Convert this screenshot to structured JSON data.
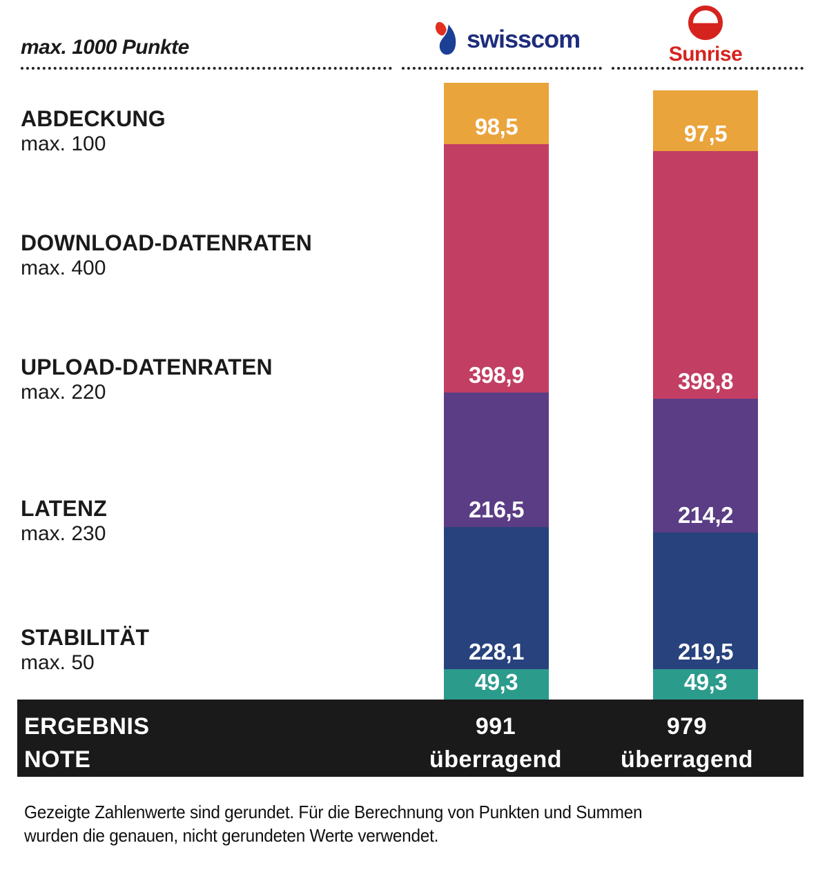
{
  "header": {
    "scale_note": "max. 1000 Punkte",
    "swisscom_label": "swisscom",
    "sunrise_label": "Sunrise"
  },
  "chart_data": {
    "type": "bar",
    "stacked": true,
    "title": "max. 1000 Punkte",
    "max_total": 1000,
    "legend_position": "left",
    "grid": false,
    "categories": [
      {
        "label": "ABDECKUNG",
        "max_label": "max. 100",
        "max": 100
      },
      {
        "label": "DOWNLOAD-DATENRATEN",
        "max_label": "max. 400",
        "max": 400
      },
      {
        "label": "UPLOAD-DATENRATEN",
        "max_label": "max. 220",
        "max": 220
      },
      {
        "label": "LATENZ",
        "max_label": "max. 230",
        "max": 230
      },
      {
        "label": "STABILITÄT",
        "max_label": "max. 50",
        "max": 50
      }
    ],
    "segment_colors": [
      "#EAA43C",
      "#C23E63",
      "#5A3D85",
      "#27427D",
      "#2B9B8C"
    ],
    "series": [
      {
        "name": "Swisscom",
        "values": [
          98.5,
          398.9,
          216.5,
          228.1,
          49.3
        ],
        "value_labels": [
          "98,5",
          "398,9",
          "216,5",
          "228,1",
          "49,3"
        ],
        "total": "991",
        "grade": "überragend"
      },
      {
        "name": "Sunrise",
        "values": [
          97.5,
          398.8,
          214.2,
          219.5,
          49.3
        ],
        "value_labels": [
          "97,5",
          "398,8",
          "214,2",
          "219,5",
          "49,3"
        ],
        "total": "979",
        "grade": "überragend"
      }
    ]
  },
  "result": {
    "ergebnis_label": "ERGEBNIS",
    "note_label": "NOTE"
  },
  "footnote": {
    "line1": "Gezeigte Zahlenwerte sind gerundet. Für die Berechnung von Punkten und Summen",
    "line2": "wurden die genauen, nicht gerundeten Werte verwendet."
  },
  "brand_colors": {
    "swisscom_blue": "#1E2D7C",
    "swisscom_red": "#E03020",
    "sunrise_red": "#D6231F",
    "result_bar_black": "#1A1A1A"
  }
}
